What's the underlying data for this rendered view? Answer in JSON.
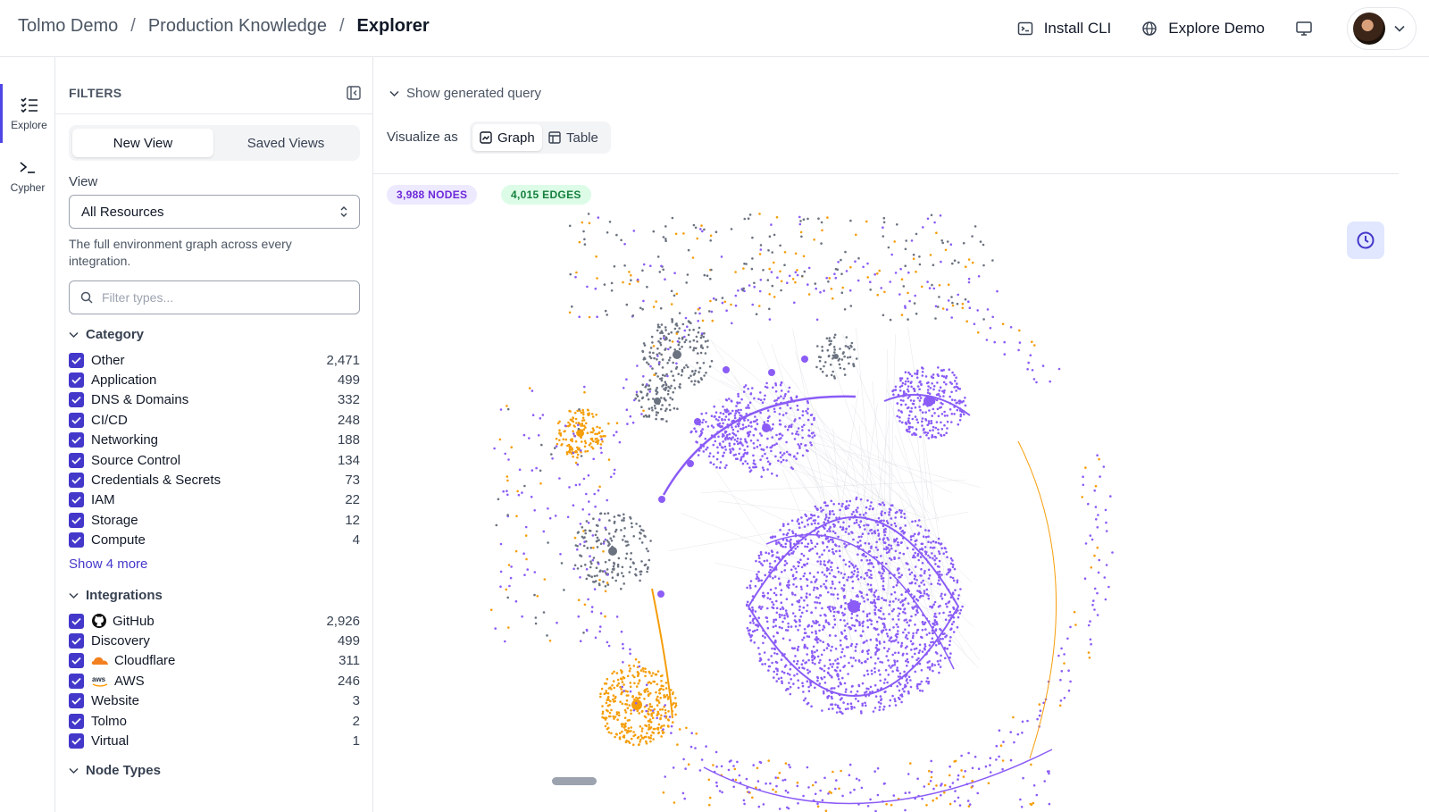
{
  "breadcrumb": [
    "Tolmo Demo",
    "Production Knowledge",
    "Explorer"
  ],
  "header": {
    "install_cli": "Install CLI",
    "explore_demo": "Explore Demo"
  },
  "rail": {
    "explore": "Explore",
    "cypher": "Cypher"
  },
  "filters": {
    "title": "FILTERS",
    "tabs": [
      "New View",
      "Saved Views"
    ],
    "view_label": "View",
    "view_value": "All Resources",
    "description": "The full environment graph across every integration.",
    "search_placeholder": "Filter types...",
    "category_title": "Category",
    "categories": [
      {
        "label": "Other",
        "count": "2,471"
      },
      {
        "label": "Application",
        "count": "499"
      },
      {
        "label": "DNS & Domains",
        "count": "332"
      },
      {
        "label": "CI/CD",
        "count": "248"
      },
      {
        "label": "Networking",
        "count": "188"
      },
      {
        "label": "Source Control",
        "count": "134"
      },
      {
        "label": "Credentials & Secrets",
        "count": "73"
      },
      {
        "label": "IAM",
        "count": "22"
      },
      {
        "label": "Storage",
        "count": "12"
      },
      {
        "label": "Compute",
        "count": "4"
      }
    ],
    "show_more": "Show 4 more",
    "integrations_title": "Integrations",
    "integrations": [
      {
        "label": "GitHub",
        "count": "2,926",
        "icon": "github-icon"
      },
      {
        "label": "Discovery",
        "count": "499",
        "icon": ""
      },
      {
        "label": "Cloudflare",
        "count": "311",
        "icon": "cloudflare-icon"
      },
      {
        "label": "AWS",
        "count": "246",
        "icon": "aws-icon"
      },
      {
        "label": "Website",
        "count": "3",
        "icon": ""
      },
      {
        "label": "Tolmo",
        "count": "2",
        "icon": ""
      },
      {
        "label": "Virtual",
        "count": "1",
        "icon": ""
      }
    ],
    "node_types_title": "Node Types"
  },
  "main": {
    "show_query": "Show generated query",
    "visualize_as": "Visualize as",
    "viz_options": [
      "Graph",
      "Table"
    ],
    "nodes_badge": "3,988 NODES",
    "edges_badge": "4,015 EDGES"
  },
  "colors": {
    "accent": "#4338ca",
    "purple": "#8b5cf6",
    "orange": "#f59e0b",
    "gray": "#6b7280"
  }
}
